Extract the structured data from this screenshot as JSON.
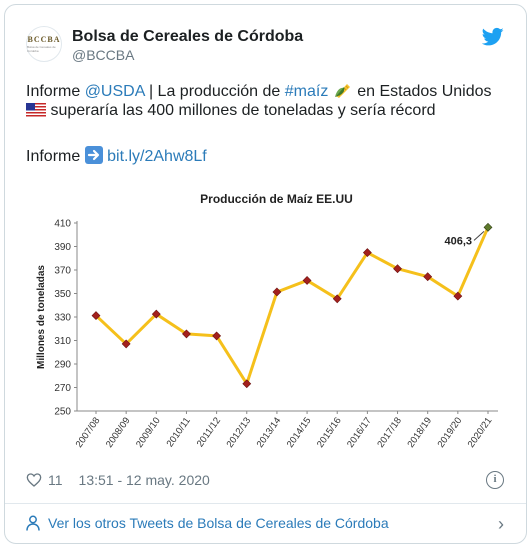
{
  "author": {
    "name": "Bolsa de Cereales de Córdoba",
    "handle": "@BCCBA",
    "avatar_text": "BCCBA",
    "avatar_subtext": "Bolsa de Cereales de Córdoba"
  },
  "tweet": {
    "line1_prefix": "Informe ",
    "mention": "@USDA",
    "line1_mid": " | La producción de ",
    "hashtag": "#maíz",
    "line1_suffix": " en Estados Unidos",
    "line2": " superaría las 400 millones de toneladas y sería récord",
    "line3_prefix": "Informe ",
    "link": "bit.ly/2Ahw8Lf"
  },
  "footer": {
    "likes": "11",
    "timestamp": "13:51 - 12 may. 2020"
  },
  "see_more": "Ver los otros Tweets de Bolsa de Cereales de Córdoba",
  "icons": {
    "bird": "twitter-bird-icon",
    "heart": "heart-icon",
    "info": "info-icon",
    "person": "person-icon",
    "chevron": "chevron-right-icon",
    "corn": "corn-emoji-icon",
    "flag": "us-flag-emoji-icon",
    "arrow": "arrow-right-emoji-icon"
  },
  "colors": {
    "line": "#f5c01b",
    "marker": "#a3201d",
    "last_marker": "#5f7a2c",
    "link": "#2b7bb9",
    "bird": "#1da1f2"
  },
  "chart_data": {
    "type": "line",
    "title": "Producción de Maíz EE.UU",
    "xlabel": "",
    "ylabel": "Millones de toneladas",
    "categories": [
      "2007/08",
      "2008/09",
      "2009/10",
      "2010/11",
      "2011/12",
      "2012/13",
      "2013/14",
      "2014/15",
      "2015/16",
      "2016/17",
      "2017/18",
      "2018/19",
      "2019/20",
      "2020/21"
    ],
    "values": [
      331.2,
      307.1,
      332.5,
      315.6,
      313.9,
      273.2,
      351.3,
      361.1,
      345.5,
      384.8,
      371.1,
      364.3,
      347.8,
      406.3
    ],
    "ylim": [
      250,
      410
    ],
    "yticks": [
      250,
      270,
      290,
      310,
      330,
      350,
      370,
      390,
      410
    ],
    "annotation": {
      "index": 13,
      "text": "406,3"
    },
    "grid": false,
    "legend": "none"
  }
}
